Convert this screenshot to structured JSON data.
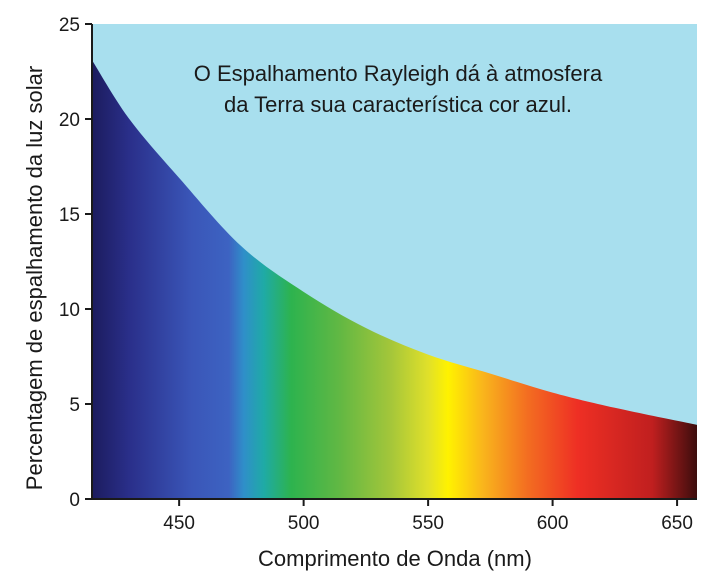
{
  "chart_data": {
    "type": "area",
    "title": "",
    "xlabel": "Comprimento de Onda (nm)",
    "ylabel": "Percentagem de espalhamento da luz solar",
    "xlim": [
      415,
      658
    ],
    "ylim": [
      0,
      25
    ],
    "x_ticks": [
      450,
      500,
      550,
      600,
      650
    ],
    "y_ticks": [
      0,
      5,
      10,
      15,
      20,
      25
    ],
    "grid": false,
    "legend": "none",
    "annotation_lines": [
      "O Espalhamento Rayleigh dá à atmosfera",
      "da Terra sua característica cor azul."
    ],
    "colors": {
      "background": "#a8dfee",
      "axis": "#1a1a1a"
    },
    "series": [
      {
        "x": [
          415,
          430,
          450,
          475,
          500,
          525,
          550,
          575,
          600,
          625,
          658
        ],
        "y": [
          23.1,
          20.0,
          16.9,
          13.3,
          10.9,
          9.0,
          7.6,
          6.6,
          5.6,
          4.8,
          3.9
        ]
      }
    ],
    "spectrum_stops": [
      {
        "nm": 415,
        "color": "#1c1c5e"
      },
      {
        "nm": 430,
        "color": "#2a2f8a"
      },
      {
        "nm": 455,
        "color": "#3a56b8"
      },
      {
        "nm": 470,
        "color": "#3d63c2"
      },
      {
        "nm": 476,
        "color": "#2f8fc9"
      },
      {
        "nm": 484,
        "color": "#1faaa6"
      },
      {
        "nm": 495,
        "color": "#2db34e"
      },
      {
        "nm": 515,
        "color": "#63b843"
      },
      {
        "nm": 535,
        "color": "#a4c63a"
      },
      {
        "nm": 550,
        "color": "#e0e02a"
      },
      {
        "nm": 558,
        "color": "#fff200"
      },
      {
        "nm": 572,
        "color": "#f9b51c"
      },
      {
        "nm": 590,
        "color": "#f36d21"
      },
      {
        "nm": 610,
        "color": "#ee2f24"
      },
      {
        "nm": 640,
        "color": "#c01f1f"
      },
      {
        "nm": 658,
        "color": "#3c0d0d"
      }
    ]
  }
}
